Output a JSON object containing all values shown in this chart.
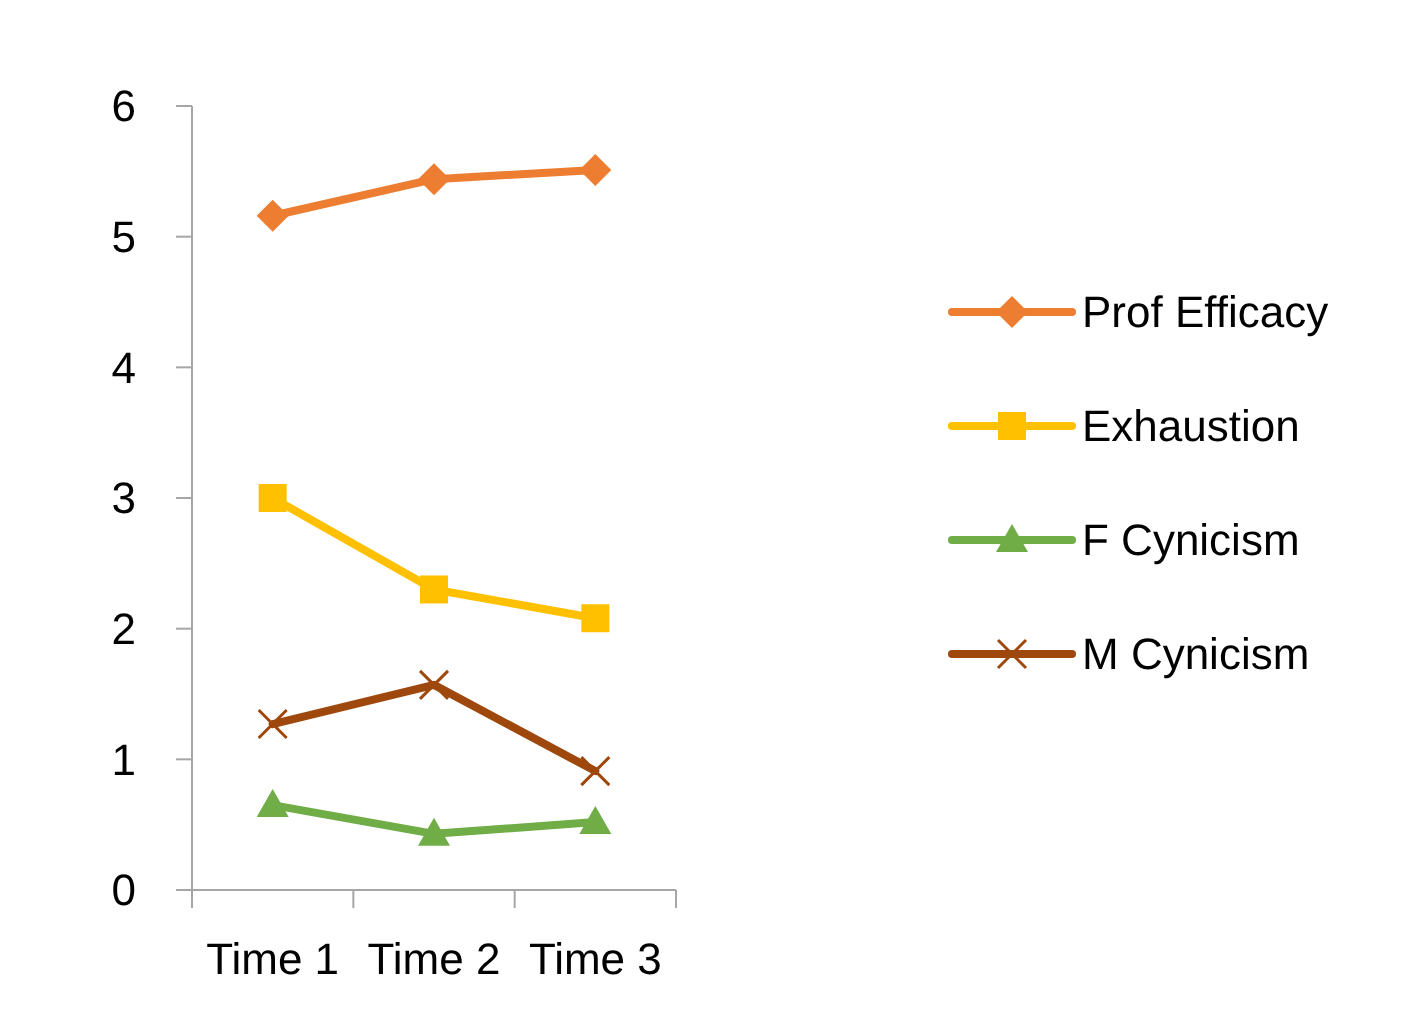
{
  "chart_data": {
    "type": "line",
    "categories": [
      "Time 1",
      "Time 2",
      "Time 3"
    ],
    "ylim": [
      0,
      6
    ],
    "yticks": [
      0,
      1,
      2,
      3,
      4,
      5,
      6
    ],
    "grid": false,
    "legend": "right",
    "line_style": "solid",
    "series": [
      {
        "name": "Prof Efficacy",
        "color": "#ed7d31",
        "marker": "diamond",
        "values": [
          5.16,
          5.44,
          5.51
        ]
      },
      {
        "name": "Exhaustion",
        "color": "#ffc000",
        "marker": "square",
        "values": [
          3.0,
          2.3,
          2.08
        ]
      },
      {
        "name": "F Cynicism",
        "color": "#70ad47",
        "marker": "triangle",
        "values": [
          0.65,
          0.43,
          0.52
        ]
      },
      {
        "name": "M Cynicism",
        "color": "#9e480e",
        "marker": "cross",
        "values": [
          1.27,
          1.57,
          0.91
        ]
      }
    ]
  }
}
